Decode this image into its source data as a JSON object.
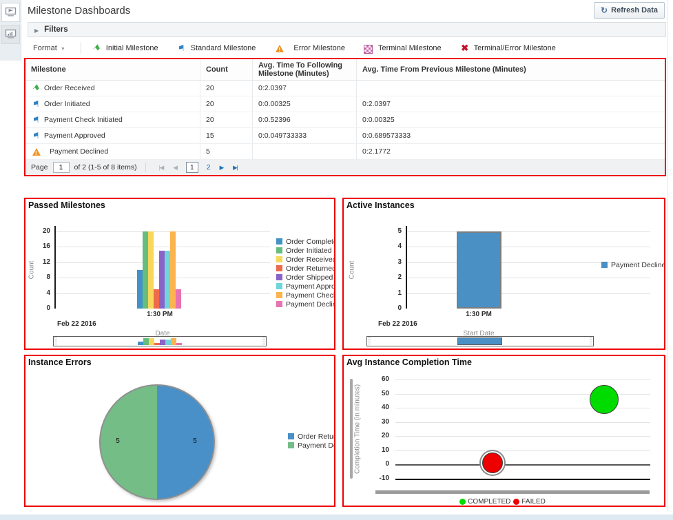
{
  "header": {
    "title": "Milestone Dashboards",
    "refresh_label": "Refresh Data"
  },
  "filters": {
    "label": "Filters"
  },
  "toolbar": {
    "format_label": "Format",
    "legend": [
      {
        "icon": "initial",
        "label": "Initial Milestone"
      },
      {
        "icon": "standard",
        "label": "Standard Milestone"
      },
      {
        "icon": "error",
        "label": "Error Milestone"
      },
      {
        "icon": "terminal",
        "label": "Terminal Milestone"
      },
      {
        "icon": "terminal-error",
        "label": "Terminal/Error Milestone"
      }
    ]
  },
  "table": {
    "columns": [
      "Milestone",
      "Count",
      "Avg. Time To Following Milestone (Minutes)",
      "Avg. Time From Previous Milestone (Minutes)"
    ],
    "rows": [
      {
        "icon": "initial",
        "milestone": "Order Received",
        "count": "20",
        "avg_to": "0:2.0397",
        "avg_from": ""
      },
      {
        "icon": "standard",
        "milestone": "Order Initiated",
        "count": "20",
        "avg_to": "0:0.00325",
        "avg_from": "0:2.0397"
      },
      {
        "icon": "standard",
        "milestone": "Payment Check Initiated",
        "count": "20",
        "avg_to": "0:0.52396",
        "avg_from": "0:0.00325"
      },
      {
        "icon": "standard",
        "milestone": "Payment Approved",
        "count": "15",
        "avg_to": "0:0.049733333",
        "avg_from": "0:0.689573333"
      },
      {
        "icon": "error",
        "milestone": "Payment Declined",
        "count": "5",
        "avg_to": "",
        "avg_from": "0:2.1772"
      }
    ],
    "pagination": {
      "page_label": "Page",
      "page_value": "1",
      "range_label": "of 2 (1-5 of 8 items)",
      "pages": [
        "1",
        "2"
      ],
      "current_page": "1"
    }
  },
  "chart_data": [
    {
      "type": "bar",
      "title": "Passed Milestones",
      "xlabel": "Date",
      "ylabel": "Count",
      "date_label": "Feb 22 2016",
      "categories": [
        "1:30 PM"
      ],
      "ylim": [
        0,
        20
      ],
      "yticks": [
        0,
        4,
        8,
        12,
        16,
        20
      ],
      "legend_position": "right",
      "series": [
        {
          "name": "Order Complete",
          "value": 10,
          "color": "#4292c6"
        },
        {
          "name": "Order Initiated",
          "value": 20,
          "color": "#66bd7e"
        },
        {
          "name": "Order Received",
          "value": 20,
          "color": "#f7d85b"
        },
        {
          "name": "Order Returned",
          "value": 5,
          "color": "#ed6a4d"
        },
        {
          "name": "Order Shipped",
          "value": 15,
          "color": "#8a63c9"
        },
        {
          "name": "Payment Approved",
          "value": 15,
          "color": "#6fd5da"
        },
        {
          "name": "Payment Check Initiated",
          "value": 20,
          "color": "#fcb44f"
        },
        {
          "name": "Payment Declined",
          "value": 5,
          "color": "#e873b0"
        }
      ]
    },
    {
      "type": "bar",
      "title": "Active Instances",
      "xlabel": "Start Date",
      "ylabel": "Count",
      "date_label": "Feb 22 2016",
      "categories": [
        "1:30 PM"
      ],
      "ylim": [
        0,
        5
      ],
      "yticks": [
        0,
        1,
        2,
        3,
        4,
        5
      ],
      "legend_position": "right",
      "series": [
        {
          "name": "Payment Declined",
          "value": 5,
          "color": "#4a90c4"
        }
      ]
    },
    {
      "type": "pie",
      "title": "Instance Errors",
      "legend_position": "right",
      "slices": [
        {
          "name": "Order Returned",
          "value": 5,
          "color": "#4990c9"
        },
        {
          "name": "Payment Declined",
          "value": 5,
          "color": "#74bd87"
        }
      ]
    },
    {
      "type": "bubble",
      "title": "Avg Instance Completion Time",
      "ylabel": "Completion Time (in minutes)",
      "ylim": [
        -10,
        60
      ],
      "yticks": [
        60,
        50,
        40,
        30,
        20,
        10,
        0,
        -10
      ],
      "legend_position": "bottom",
      "points": [
        {
          "name": "COMPLETED",
          "y": 46,
          "x_pct": 82,
          "r": 21,
          "color": "#00dc00",
          "selected": false
        },
        {
          "name": "FAILED",
          "y": 1,
          "x_pct": 38,
          "r": 15,
          "color": "#ee0000",
          "selected": true
        }
      ]
    }
  ]
}
